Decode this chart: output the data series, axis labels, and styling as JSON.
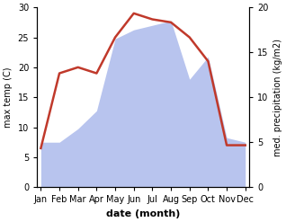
{
  "months": [
    "Jan",
    "Feb",
    "Mar",
    "Apr",
    "May",
    "Jun",
    "Jul",
    "Aug",
    "Sep",
    "Oct",
    "Nov",
    "Dec"
  ],
  "month_positions": [
    0,
    1,
    2,
    3,
    4,
    5,
    6,
    7,
    8,
    9,
    10,
    11
  ],
  "temperature": [
    6.5,
    19.0,
    20.0,
    19.0,
    25.0,
    29.0,
    28.0,
    27.5,
    25.0,
    21.0,
    7.0,
    7.0
  ],
  "precipitation_right": [
    5.0,
    5.0,
    6.5,
    8.5,
    16.5,
    17.5,
    18.0,
    18.5,
    12.0,
    14.5,
    5.5,
    5.0
  ],
  "temp_color": "#c0392b",
  "precip_color": "#b8c4ee",
  "background_color": "#ffffff",
  "left_ylabel": "max temp (C)",
  "right_ylabel": "med. precipitation (kg/m2)",
  "xlabel": "date (month)",
  "ylim_left": [
    0,
    30
  ],
  "ylim_right": [
    0,
    20
  ],
  "temp_linewidth": 1.8,
  "xlabel_fontsize": 8,
  "ylabel_fontsize": 7,
  "tick_fontsize": 7,
  "right_yticks": [
    0,
    5,
    10,
    15,
    20
  ],
  "left_yticks": [
    0,
    5,
    10,
    15,
    20,
    25,
    30
  ]
}
